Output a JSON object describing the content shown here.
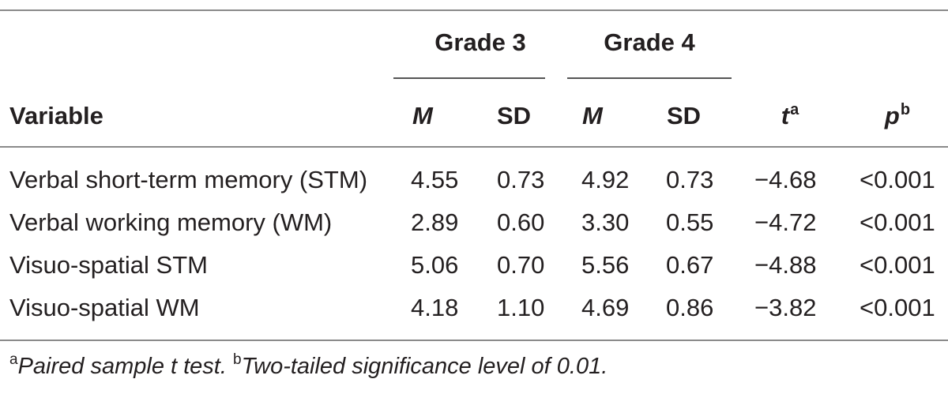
{
  "table": {
    "group_headers": {
      "grade3": "Grade 3",
      "grade4": "Grade 4"
    },
    "column_headers": {
      "variable": "Variable",
      "m1": "M",
      "sd1": "SD",
      "m2": "M",
      "sd2": "SD",
      "t": "t",
      "t_sup": "a",
      "p": "p",
      "p_sup": "b"
    },
    "rows": [
      {
        "variable": "Verbal short-term memory (STM)",
        "m1": "4.55",
        "sd1": "0.73",
        "m2": "4.92",
        "sd2": "0.73",
        "t": "−4.68",
        "p": "<0.001"
      },
      {
        "variable": "Verbal working memory (WM)",
        "m1": "2.89",
        "sd1": "0.60",
        "m2": "3.30",
        "sd2": "0.55",
        "t": "−4.72",
        "p": "<0.001"
      },
      {
        "variable": "Visuo-spatial STM",
        "m1": "5.06",
        "sd1": "0.70",
        "m2": "5.56",
        "sd2": "0.67",
        "t": "−4.88",
        "p": "<0.001"
      },
      {
        "variable": "Visuo-spatial WM",
        "m1": "4.18",
        "sd1": "1.10",
        "m2": "4.69",
        "sd2": "0.86",
        "t": "−3.82",
        "p": "<0.001"
      }
    ],
    "footnote": {
      "a_marker": "a",
      "a_text": "Paired sample t test.",
      "b_marker": "b",
      "b_text": "Two-tailed significance level of 0.01."
    }
  }
}
